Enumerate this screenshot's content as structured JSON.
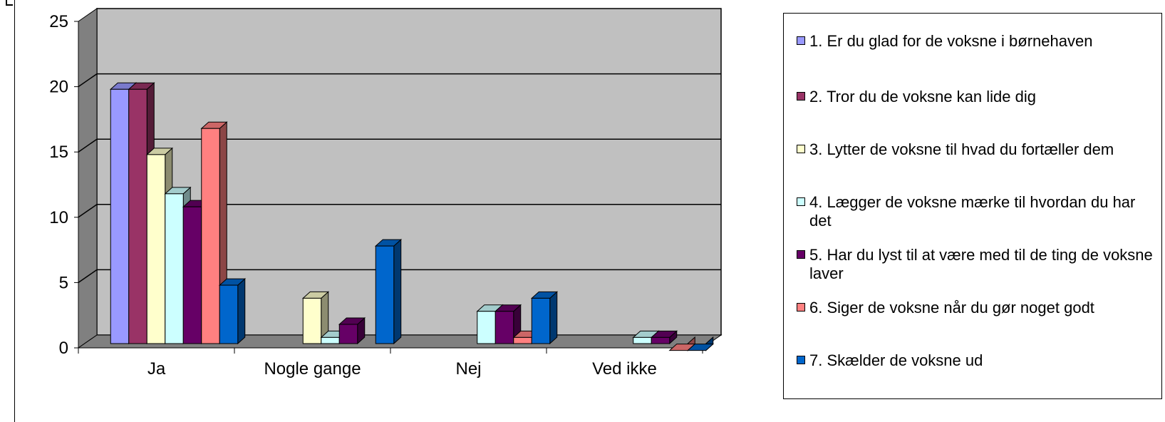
{
  "chart_data": {
    "type": "bar",
    "categories": [
      "Ja",
      "Nogle gange",
      "Nej",
      "Ved ikke"
    ],
    "ylim": [
      0,
      25
    ],
    "yticks": [
      0,
      5,
      10,
      15,
      20,
      25
    ],
    "grid": true,
    "legend_position": "right",
    "series": [
      {
        "name": "1. Er du glad for de voksne i børnehaven",
        "color": "#9999ff",
        "values": [
          21,
          0,
          0,
          0
        ]
      },
      {
        "name": "2. Tror du de voksne kan lide dig",
        "color": "#993366",
        "values": [
          21,
          0,
          0,
          0
        ]
      },
      {
        "name": "3. Lytter de voksne til hvad du fortæller dem",
        "color": "#ffffcc",
        "values": [
          16,
          5,
          0,
          0
        ]
      },
      {
        "name": "4. Lægger de voksne mærke til hvordan du har det",
        "color": "#ccffff",
        "values": [
          13,
          2,
          4,
          2
        ]
      },
      {
        "name": "5. Har du lyst til at være med til de ting de voksne laver",
        "color": "#660066",
        "values": [
          12,
          3,
          4,
          2
        ]
      },
      {
        "name": "6. Siger de voksne når du gør noget godt",
        "color": "#ff8080",
        "values": [
          18,
          0,
          2,
          1
        ]
      },
      {
        "name": "7. Skælder de voksne ud",
        "color": "#0066cc",
        "values": [
          6,
          9,
          5,
          1
        ]
      }
    ]
  }
}
